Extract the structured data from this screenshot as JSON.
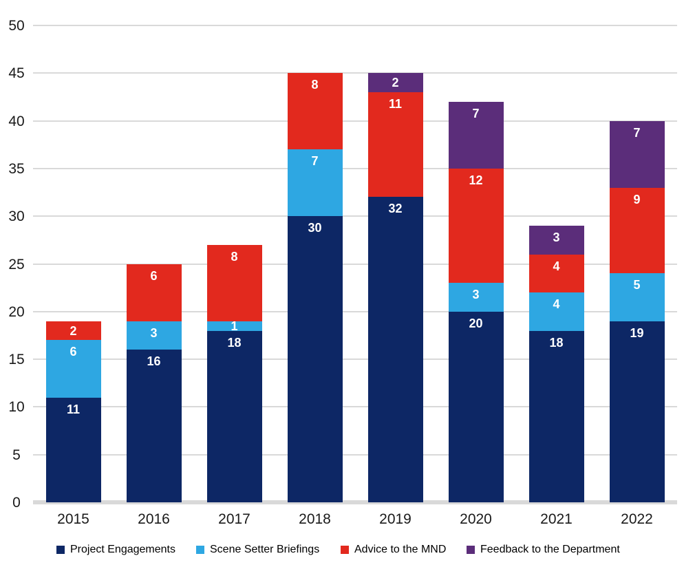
{
  "chart_data": {
    "type": "bar",
    "stacked": true,
    "title": "",
    "xlabel": "",
    "ylabel": "",
    "categories": [
      "2015",
      "2016",
      "2017",
      "2018",
      "2019",
      "2020",
      "2021",
      "2022"
    ],
    "series": [
      {
        "name": "Project Engagements",
        "color": "#0d2765",
        "values": [
          11,
          16,
          18,
          30,
          32,
          20,
          18,
          19
        ]
      },
      {
        "name": "Scene Setter Briefings",
        "color": "#2ea7e2",
        "values": [
          6,
          3,
          1,
          7,
          0,
          3,
          4,
          5
        ]
      },
      {
        "name": "Advice to the MND",
        "color": "#e2291e",
        "values": [
          2,
          6,
          8,
          8,
          11,
          12,
          4,
          9
        ]
      },
      {
        "name": "Feedback to the Department",
        "color": "#5b2d7a",
        "values": [
          0,
          0,
          0,
          0,
          2,
          7,
          3,
          7
        ]
      }
    ],
    "totals": [
      19,
      25,
      27,
      45,
      45,
      42,
      29,
      40
    ],
    "ylim": [
      0,
      50
    ],
    "ytick_interval": 5,
    "yticks": [
      0,
      5,
      10,
      15,
      20,
      25,
      30,
      35,
      40,
      45,
      50
    ],
    "grid": true,
    "gridline_color": "#d9d9d9",
    "axis_text_color": "#1a1a1a",
    "data_labels": true,
    "data_label_color": "#ffffff",
    "legend_position": "bottom"
  }
}
